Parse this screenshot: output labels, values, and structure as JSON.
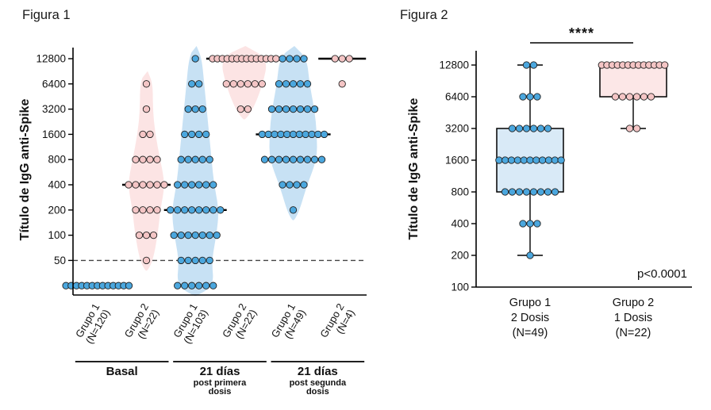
{
  "colors": {
    "blue_dot": "#4BA7DE",
    "blue_violin": "#BDDCF2",
    "blue_box": "#D9EAF7",
    "pink_dot": "#F4C5C5",
    "pink_violin": "#FBDFDF",
    "pink_box": "#FCE7E7",
    "axis": "#000000",
    "cutoff": "#444444"
  },
  "chart_data": [
    {
      "id": "figura1",
      "type": "violin-dot",
      "title": "Figura 1",
      "ylabel": "Título de IgG anti-Spike",
      "yscale": "log2",
      "yticks": [
        12800,
        6400,
        3200,
        1600,
        800,
        400,
        200,
        100,
        50
      ],
      "cutoff_value": 50,
      "groups": [
        {
          "label": "Grupo 1",
          "n_label": "(N=120)",
          "color": "blue",
          "median": 25,
          "show_median": false,
          "violin": false,
          "points": [
            {
              "v": 25,
              "n": 13
            }
          ]
        },
        {
          "label": "Grupo 2",
          "n_label": "(N=22)",
          "color": "pink",
          "median": 400,
          "show_median": true,
          "violin": true,
          "points": [
            {
              "v": 6400,
              "n": 1
            },
            {
              "v": 3200,
              "n": 1
            },
            {
              "v": 1600,
              "n": 2
            },
            {
              "v": 800,
              "n": 4
            },
            {
              "v": 400,
              "n": 6
            },
            {
              "v": 200,
              "n": 4
            },
            {
              "v": 100,
              "n": 3
            },
            {
              "v": 50,
              "n": 1
            }
          ]
        },
        {
          "label": "Grupo 1",
          "n_label": "(N=103)",
          "color": "blue",
          "median": 200,
          "show_median": true,
          "violin": true,
          "points": [
            {
              "v": 12800,
              "n": 1
            },
            {
              "v": 6400,
              "n": 2
            },
            {
              "v": 3200,
              "n": 3
            },
            {
              "v": 1600,
              "n": 4
            },
            {
              "v": 800,
              "n": 5
            },
            {
              "v": 400,
              "n": 6
            },
            {
              "v": 200,
              "n": 8
            },
            {
              "v": 100,
              "n": 7
            },
            {
              "v": 50,
              "n": 5
            },
            {
              "v": 25,
              "n": 6
            }
          ]
        },
        {
          "label": "Grupo 2",
          "n_label": "(N=22)",
          "color": "pink",
          "median": 12800,
          "show_median": true,
          "violin": true,
          "points": [
            {
              "v": 12800,
              "n": 14
            },
            {
              "v": 6400,
              "n": 6
            },
            {
              "v": 3200,
              "n": 2
            }
          ]
        },
        {
          "label": "Grupo 1",
          "n_label": "(N=49)",
          "color": "blue",
          "median": 1600,
          "show_median": true,
          "violin": true,
          "points": [
            {
              "v": 12800,
              "n": 4
            },
            {
              "v": 6400,
              "n": 5
            },
            {
              "v": 3200,
              "n": 7
            },
            {
              "v": 1600,
              "n": 11
            },
            {
              "v": 800,
              "n": 9
            },
            {
              "v": 400,
              "n": 4
            },
            {
              "v": 200,
              "n": 1
            }
          ]
        },
        {
          "label": "Grupo 2",
          "n_label": "(N=4)",
          "color": "pink",
          "median": 12800,
          "show_median": true,
          "violin": false,
          "points": [
            {
              "v": 12800,
              "n": 3
            },
            {
              "v": 6400,
              "n": 1
            }
          ]
        }
      ],
      "group_brackets": [
        {
          "from": 0,
          "to": 1,
          "line1": "Basal",
          "line2": "",
          "line3": ""
        },
        {
          "from": 2,
          "to": 3,
          "line1": "21 días",
          "line2": "post primera",
          "line3": "dosis"
        },
        {
          "from": 4,
          "to": 5,
          "line1": "21 días",
          "line2": "post segunda",
          "line3": "dosis"
        }
      ]
    },
    {
      "id": "figura2",
      "type": "box",
      "title": "Figura 2",
      "ylabel": "Título de IgG anti-Spike",
      "yscale": "log2",
      "yticks": [
        12800,
        6400,
        3200,
        1600,
        800,
        400,
        200,
        100
      ],
      "significance": {
        "stars": "****",
        "p_label": "p<0.0001"
      },
      "groups": [
        {
          "label": "Grupo 1",
          "dose_label": "2 Dosis",
          "n_label": "(N=49)",
          "color": "blue",
          "box": {
            "min": 200,
            "q1": 800,
            "median": 1600,
            "q3": 3200,
            "max": 12800
          },
          "points": [
            {
              "v": 12800,
              "n": 2
            },
            {
              "v": 6400,
              "n": 3
            },
            {
              "v": 3200,
              "n": 6
            },
            {
              "v": 1600,
              "n": 11
            },
            {
              "v": 800,
              "n": 8
            },
            {
              "v": 400,
              "n": 3
            },
            {
              "v": 200,
              "n": 1
            }
          ]
        },
        {
          "label": "Grupo 2",
          "dose_label": "1 Dosis",
          "n_label": "(N=22)",
          "color": "pink",
          "box": {
            "min": 3200,
            "q1": 6400,
            "median": 12800,
            "q3": 12800,
            "max": 12800
          },
          "points": [
            {
              "v": 12800,
              "n": 13
            },
            {
              "v": 6400,
              "n": 6
            },
            {
              "v": 3200,
              "n": 2
            }
          ]
        }
      ]
    }
  ]
}
